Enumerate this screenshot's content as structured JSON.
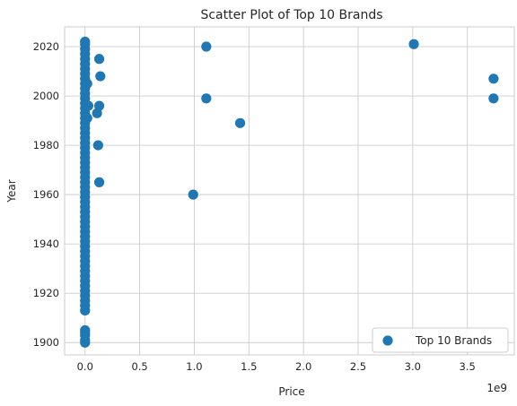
{
  "chart_data": {
    "type": "scatter",
    "title": "Scatter Plot of Top 10 Brands",
    "xlabel": "Price",
    "ylabel": "Year",
    "x_offset_label": "1e9",
    "xlim": [
      -0.187,
      3.93
    ],
    "ylim": [
      1895,
      2028
    ],
    "x_ticks": [
      0.0,
      0.5,
      1.0,
      1.5,
      2.0,
      2.5,
      3.0,
      3.5
    ],
    "x_tick_labels": [
      "0.0",
      "0.5",
      "1.0",
      "1.5",
      "2.0",
      "2.5",
      "3.0",
      "3.5"
    ],
    "y_ticks": [
      1900,
      1920,
      1940,
      1960,
      1980,
      2000,
      2020
    ],
    "y_tick_labels": [
      "1900",
      "1920",
      "1940",
      "1960",
      "1980",
      "2000",
      "2020"
    ],
    "grid": true,
    "legend_position": "lower-right",
    "series": [
      {
        "name": "Top 10 Brands",
        "color": "#1f77b4",
        "points": [
          {
            "x": 0.0,
            "y": 1900
          },
          {
            "x": 0.0,
            "y": 1901
          },
          {
            "x": 0.0,
            "y": 1903
          },
          {
            "x": 0.0,
            "y": 1904
          },
          {
            "x": 0.0,
            "y": 1905
          },
          {
            "x": 0.0,
            "y": 1913
          },
          {
            "x": 0.0,
            "y": 1915
          },
          {
            "x": 0.0,
            "y": 1917
          },
          {
            "x": 0.0,
            "y": 1919
          },
          {
            "x": 0.0,
            "y": 1921
          },
          {
            "x": 0.0,
            "y": 1923
          },
          {
            "x": 0.0,
            "y": 1925
          },
          {
            "x": 0.0,
            "y": 1927
          },
          {
            "x": 0.0,
            "y": 1929
          },
          {
            "x": 0.0,
            "y": 1931
          },
          {
            "x": 0.0,
            "y": 1933
          },
          {
            "x": 0.0,
            "y": 1935
          },
          {
            "x": 0.0,
            "y": 1937
          },
          {
            "x": 0.0,
            "y": 1939
          },
          {
            "x": 0.0,
            "y": 1941
          },
          {
            "x": 0.0,
            "y": 1943
          },
          {
            "x": 0.0,
            "y": 1945
          },
          {
            "x": 0.0,
            "y": 1947
          },
          {
            "x": 0.0,
            "y": 1949
          },
          {
            "x": 0.0,
            "y": 1951
          },
          {
            "x": 0.0,
            "y": 1953
          },
          {
            "x": 0.0,
            "y": 1955
          },
          {
            "x": 0.0,
            "y": 1957
          },
          {
            "x": 0.0,
            "y": 1959
          },
          {
            "x": 0.0,
            "y": 1961
          },
          {
            "x": 0.0,
            "y": 1963
          },
          {
            "x": 0.0,
            "y": 1965
          },
          {
            "x": 0.0,
            "y": 1967
          },
          {
            "x": 0.0,
            "y": 1969
          },
          {
            "x": 0.0,
            "y": 1971
          },
          {
            "x": 0.0,
            "y": 1973
          },
          {
            "x": 0.0,
            "y": 1975
          },
          {
            "x": 0.0,
            "y": 1977
          },
          {
            "x": 0.0,
            "y": 1979
          },
          {
            "x": 0.0,
            "y": 1981
          },
          {
            "x": 0.0,
            "y": 1983
          },
          {
            "x": 0.0,
            "y": 1985
          },
          {
            "x": 0.0,
            "y": 1987
          },
          {
            "x": 0.0,
            "y": 1989
          },
          {
            "x": 0.0,
            "y": 1991
          },
          {
            "x": 0.0,
            "y": 1993
          },
          {
            "x": 0.0,
            "y": 1995
          },
          {
            "x": 0.0,
            "y": 1997
          },
          {
            "x": 0.0,
            "y": 1999
          },
          {
            "x": 0.0,
            "y": 2001
          },
          {
            "x": 0.0,
            "y": 2003
          },
          {
            "x": 0.0,
            "y": 2005
          },
          {
            "x": 0.0,
            "y": 2007
          },
          {
            "x": 0.0,
            "y": 2009
          },
          {
            "x": 0.0,
            "y": 2011
          },
          {
            "x": 0.0,
            "y": 2013
          },
          {
            "x": 0.0,
            "y": 2015
          },
          {
            "x": 0.0,
            "y": 2017
          },
          {
            "x": 0.0,
            "y": 2019
          },
          {
            "x": 0.0,
            "y": 2021
          },
          {
            "x": 0.0,
            "y": 2022
          },
          {
            "x": 0.02,
            "y": 1991
          },
          {
            "x": 0.02,
            "y": 2005
          },
          {
            "x": 0.03,
            "y": 1996
          },
          {
            "x": 0.11,
            "y": 1993
          },
          {
            "x": 0.12,
            "y": 1980
          },
          {
            "x": 0.13,
            "y": 1996
          },
          {
            "x": 0.13,
            "y": 1965
          },
          {
            "x": 0.13,
            "y": 2015
          },
          {
            "x": 0.14,
            "y": 2008
          },
          {
            "x": 0.99,
            "y": 1960
          },
          {
            "x": 1.11,
            "y": 2020
          },
          {
            "x": 1.11,
            "y": 1999
          },
          {
            "x": 1.42,
            "y": 1989
          },
          {
            "x": 3.01,
            "y": 2021
          },
          {
            "x": 3.74,
            "y": 2007
          },
          {
            "x": 3.74,
            "y": 1999
          }
        ]
      }
    ]
  }
}
